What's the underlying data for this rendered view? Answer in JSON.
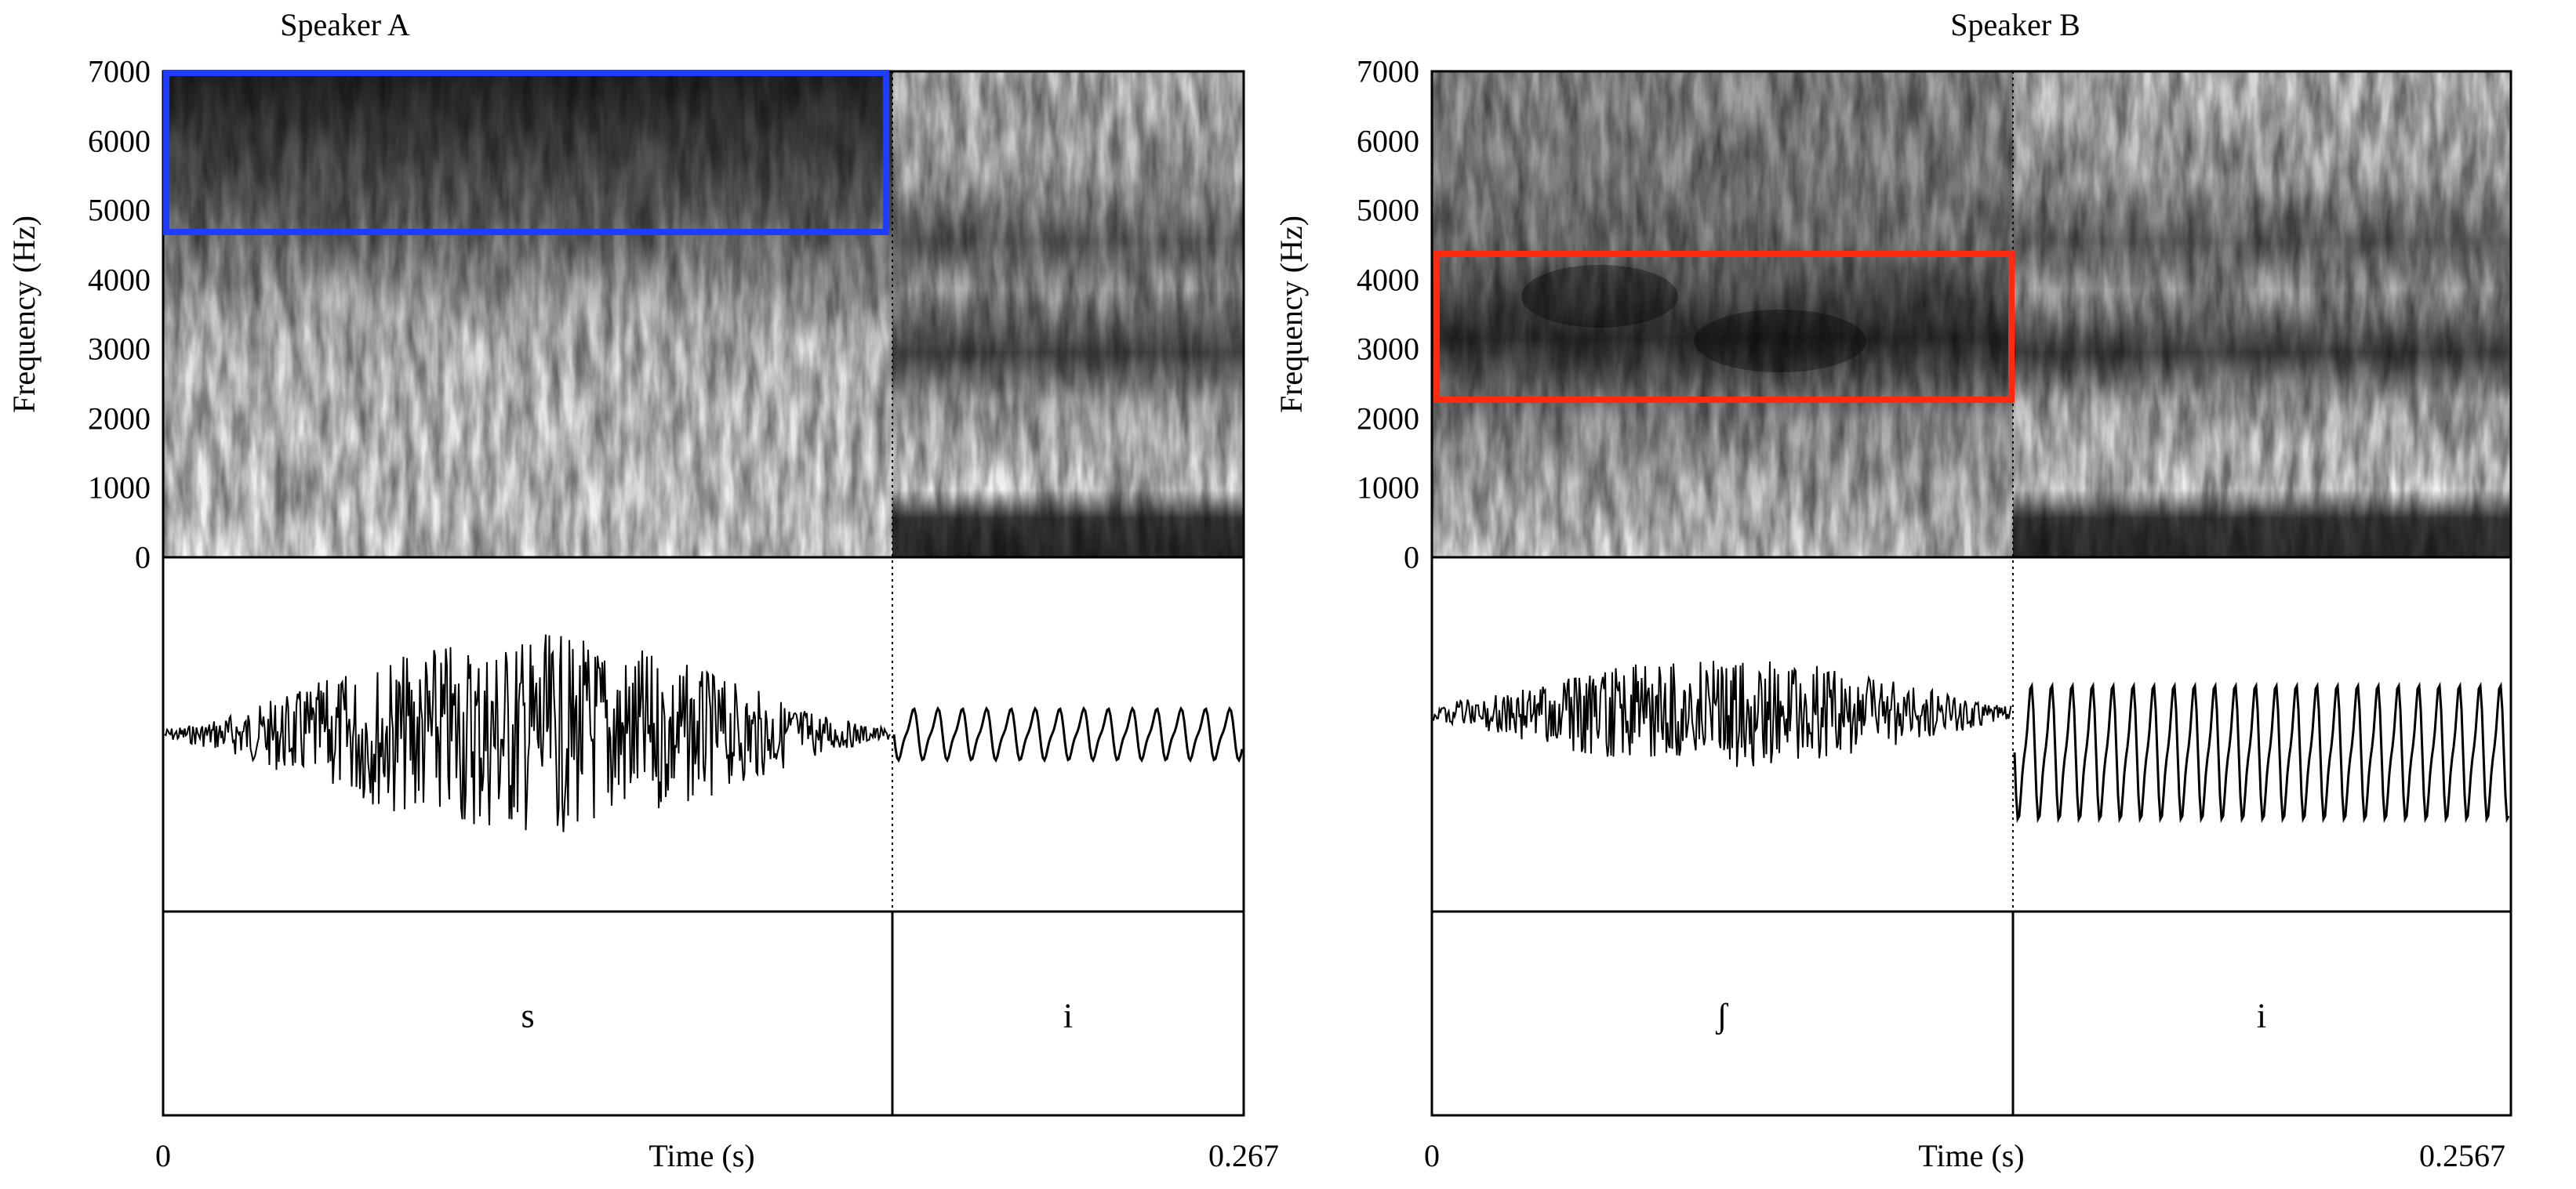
{
  "panels": [
    {
      "title": "Speaker A",
      "y_axis_label": "Frequency (Hz)",
      "y_ticks": [
        "7000",
        "6000",
        "5000",
        "4000",
        "3000",
        "2000",
        "1000",
        "0"
      ],
      "time_start": "0",
      "time_axis_label": "Time (s)",
      "time_end": "0.267",
      "duration_s": 0.267,
      "boundary_time_s": 0.178,
      "segments": [
        {
          "label": "s"
        },
        {
          "label": "i"
        }
      ],
      "highlight": {
        "color": "#1f3cff",
        "t_start_s": 0.0,
        "t_end_s": 0.178,
        "f_low_hz": 4700,
        "f_high_hz": 7000
      }
    },
    {
      "title": "Speaker B",
      "y_axis_label": "Frequency (Hz)",
      "y_ticks": [
        "7000",
        "6000",
        "5000",
        "4000",
        "3000",
        "2000",
        "1000",
        "0"
      ],
      "time_start": "0",
      "time_axis_label": "Time (s)",
      "time_end": "0.2567",
      "duration_s": 0.2567,
      "boundary_time_s": 0.1385,
      "segments": [
        {
          "label": "ʃ"
        },
        {
          "label": "i"
        }
      ],
      "highlight": {
        "color": "#ff2a10",
        "t_start_s": 0.0,
        "t_end_s": 0.1385,
        "f_low_hz": 2250,
        "f_high_hz": 4350
      }
    }
  ],
  "y_range_hz": [
    0,
    7000
  ]
}
